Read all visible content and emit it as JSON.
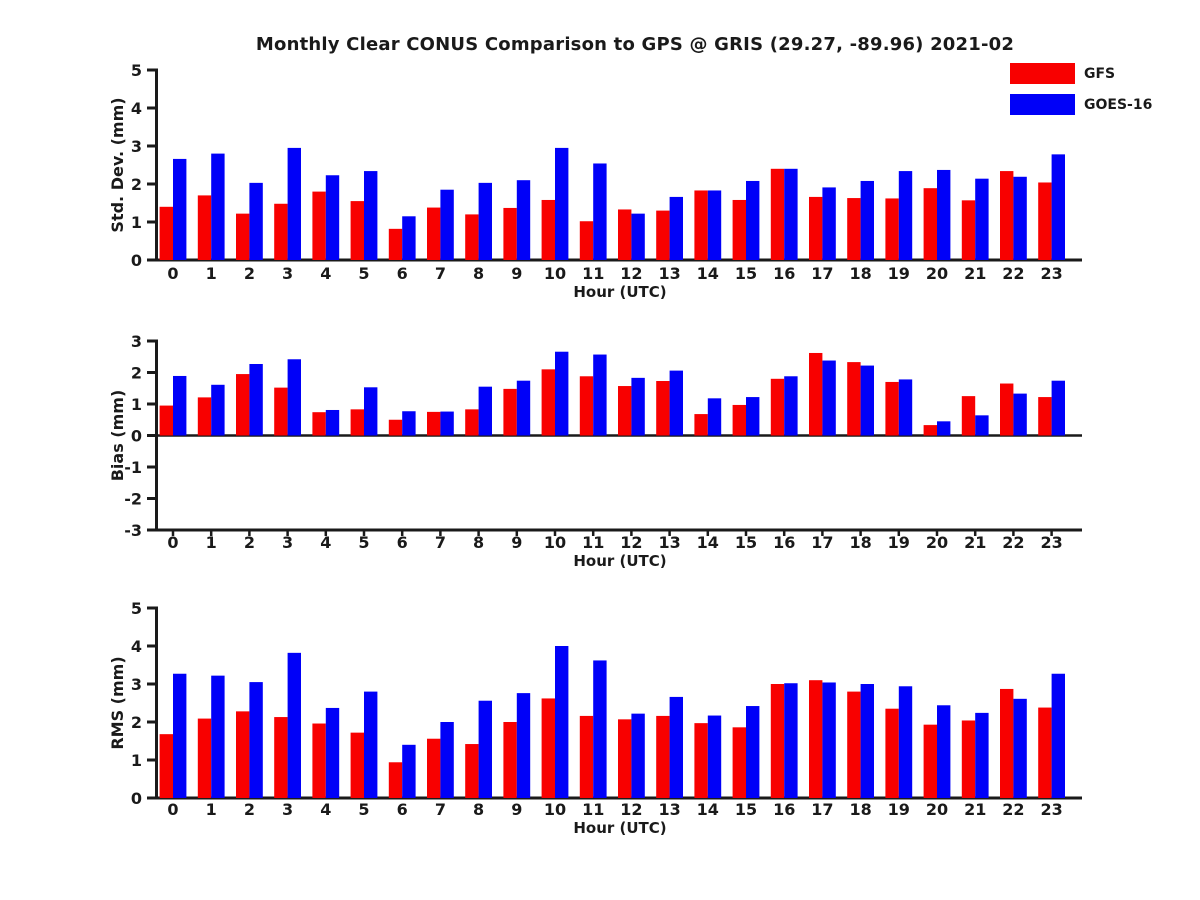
{
  "title": "Monthly Clear CONUS Comparison to GPS @ GRIS (29.27, -89.96) 2021-02",
  "legend": {
    "items": [
      {
        "label": "GFS",
        "color": "#f80000"
      },
      {
        "label": "GOES-16",
        "color": "#0000f8"
      }
    ]
  },
  "colors": {
    "gfs": "#f80000",
    "goes16": "#0000f8",
    "axis": "#1a1a1a"
  },
  "chart_data": [
    {
      "type": "bar",
      "ylabel": "Std. Dev. (mm)",
      "xlabel": "Hour (UTC)",
      "ylim": [
        0,
        5
      ],
      "yticks": [
        0,
        1,
        2,
        3,
        4,
        5
      ],
      "grid": false,
      "legend_position": "top-right",
      "categories": [
        "0",
        "1",
        "2",
        "3",
        "4",
        "5",
        "6",
        "7",
        "8",
        "9",
        "10",
        "11",
        "12",
        "13",
        "14",
        "15",
        "16",
        "17",
        "18",
        "19",
        "20",
        "21",
        "22",
        "23"
      ],
      "series": [
        {
          "name": "GFS",
          "color": "#f80000",
          "values": [
            1.4,
            1.7,
            1.22,
            1.48,
            1.8,
            1.55,
            0.82,
            1.38,
            1.2,
            1.37,
            1.58,
            1.02,
            1.33,
            1.3,
            1.83,
            1.58,
            2.4,
            1.66,
            1.63,
            1.62,
            1.89,
            1.57,
            2.34,
            2.04
          ]
        },
        {
          "name": "GOES-16",
          "color": "#0000f8",
          "values": [
            2.66,
            2.8,
            2.03,
            2.95,
            2.23,
            2.34,
            1.15,
            1.85,
            2.03,
            2.1,
            2.95,
            2.54,
            1.22,
            1.66,
            1.83,
            2.08,
            2.4,
            1.91,
            2.08,
            2.34,
            2.37,
            2.14,
            2.19,
            2.78
          ]
        }
      ]
    },
    {
      "type": "bar",
      "ylabel": "Bias (mm)",
      "xlabel": "Hour (UTC)",
      "ylim": [
        -3,
        3
      ],
      "yticks": [
        -3,
        -2,
        -1,
        0,
        1,
        2,
        3
      ],
      "zero_line": true,
      "grid": false,
      "categories": [
        "0",
        "1",
        "2",
        "3",
        "4",
        "5",
        "6",
        "7",
        "8",
        "9",
        "10",
        "11",
        "12",
        "13",
        "14",
        "15",
        "16",
        "17",
        "18",
        "19",
        "20",
        "21",
        "22",
        "23"
      ],
      "series": [
        {
          "name": "GFS",
          "color": "#f80000",
          "values": [
            0.95,
            1.21,
            1.95,
            1.52,
            0.74,
            0.83,
            0.5,
            0.75,
            0.83,
            1.48,
            2.1,
            1.88,
            1.57,
            1.73,
            0.68,
            0.97,
            1.8,
            2.62,
            2.33,
            1.7,
            0.33,
            1.25,
            1.65,
            1.22
          ]
        },
        {
          "name": "GOES-16",
          "color": "#0000f8",
          "values": [
            1.89,
            1.61,
            2.27,
            2.42,
            0.81,
            1.53,
            0.77,
            0.76,
            1.55,
            1.74,
            2.66,
            2.57,
            1.83,
            2.06,
            1.18,
            1.22,
            1.88,
            2.38,
            2.22,
            1.78,
            0.45,
            0.64,
            1.33,
            1.74
          ]
        }
      ]
    },
    {
      "type": "bar",
      "ylabel": "RMS (mm)",
      "xlabel": "Hour (UTC)",
      "ylim": [
        0,
        5
      ],
      "yticks": [
        0,
        1,
        2,
        3,
        4,
        5
      ],
      "grid": false,
      "categories": [
        "0",
        "1",
        "2",
        "3",
        "4",
        "5",
        "6",
        "7",
        "8",
        "9",
        "10",
        "11",
        "12",
        "13",
        "14",
        "15",
        "16",
        "17",
        "18",
        "19",
        "20",
        "21",
        "22",
        "23"
      ],
      "series": [
        {
          "name": "GFS",
          "color": "#f80000",
          "values": [
            1.68,
            2.09,
            2.28,
            2.13,
            1.96,
            1.72,
            0.94,
            1.56,
            1.42,
            2.0,
            2.62,
            2.16,
            2.07,
            2.16,
            1.97,
            1.86,
            3.0,
            3.1,
            2.8,
            2.35,
            1.93,
            2.04,
            2.87,
            2.38
          ]
        },
        {
          "name": "GOES-16",
          "color": "#0000f8",
          "values": [
            3.27,
            3.22,
            3.05,
            3.82,
            2.37,
            2.8,
            1.4,
            2.0,
            2.56,
            2.76,
            4.0,
            3.62,
            2.22,
            2.66,
            2.17,
            2.42,
            3.02,
            3.04,
            3.0,
            2.94,
            2.44,
            2.24,
            2.61,
            3.27
          ]
        }
      ]
    }
  ]
}
